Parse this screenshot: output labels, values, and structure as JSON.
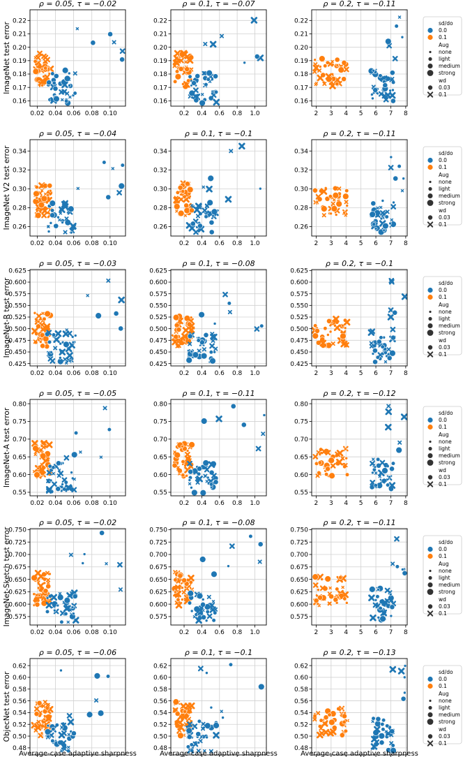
{
  "figure": {
    "xlabel": "Average-case adaptive sharpness",
    "legend": {
      "hue_title": "sd/do",
      "hue_entries": [
        {
          "label": "0.0",
          "color": "#1f77b4"
        },
        {
          "label": "0.1",
          "color": "#ff7f0e"
        }
      ],
      "size_title": "Aug",
      "size_entries": [
        "none",
        "light",
        "medium",
        "strong"
      ],
      "style_title": "wd",
      "style_entries": [
        {
          "label": "0.03",
          "marker": "circle"
        },
        {
          "label": "0.1",
          "marker": "x"
        }
      ]
    }
  },
  "chart_data": [
    {
      "type": "scatter",
      "row": 0,
      "col": 0,
      "title": "ρ = 0.05, τ = −0.02",
      "ylabel": "ImageNet test error",
      "xlim": [
        0.012,
        0.117
      ],
      "ylim": [
        0.156,
        0.228
      ],
      "xticks": [
        "0.02",
        "0.04",
        "0.06",
        "0.08",
        "0.10"
      ],
      "yticks": [
        "0.16",
        "0.17",
        "0.18",
        "0.19",
        "0.20",
        "0.21",
        "0.22"
      ]
    },
    {
      "type": "scatter",
      "row": 0,
      "col": 1,
      "title": "ρ = 0.1, τ = −0.07",
      "ylabel": "",
      "xlim": [
        0.05,
        1.13
      ],
      "ylim": [
        0.156,
        0.228
      ],
      "xticks": [
        "0.2",
        "0.4",
        "0.6",
        "0.8",
        "1.0"
      ],
      "yticks": [
        "0.16",
        "0.17",
        "0.18",
        "0.19",
        "0.20",
        "0.21",
        "0.22"
      ]
    },
    {
      "type": "scatter",
      "row": 0,
      "col": 2,
      "title": "ρ = 0.2, τ = −0.11",
      "ylabel": "",
      "xlim": [
        1.7,
        8.1
      ],
      "ylim": [
        0.156,
        0.228
      ],
      "xticks": [
        "2",
        "3",
        "4",
        "5",
        "6",
        "7",
        "8"
      ],
      "yticks": [
        "0.16",
        "0.17",
        "0.18",
        "0.19",
        "0.20",
        "0.21",
        "0.22"
      ]
    },
    {
      "type": "scatter",
      "row": 1,
      "col": 0,
      "title": "ρ = 0.05, τ = −0.04",
      "ylabel": "ImageNet V2 test error",
      "xlim": [
        0.012,
        0.117
      ],
      "ylim": [
        0.25,
        0.352
      ],
      "xticks": [
        "0.02",
        "0.04",
        "0.06",
        "0.08",
        "0.10"
      ],
      "yticks": [
        "0.26",
        "0.28",
        "0.30",
        "0.32",
        "0.34"
      ]
    },
    {
      "type": "scatter",
      "row": 1,
      "col": 1,
      "title": "ρ = 0.1, τ = −0.1",
      "ylabel": "",
      "xlim": [
        0.05,
        1.13
      ],
      "ylim": [
        0.25,
        0.352
      ],
      "xticks": [
        "0.2",
        "0.4",
        "0.6",
        "0.8",
        "1.0"
      ],
      "yticks": [
        "0.26",
        "0.28",
        "0.30",
        "0.32",
        "0.34"
      ]
    },
    {
      "type": "scatter",
      "row": 1,
      "col": 2,
      "title": "ρ = 0.2, τ = −0.11",
      "ylabel": "",
      "xlim": [
        1.7,
        8.1
      ],
      "ylim": [
        0.25,
        0.352
      ],
      "xticks": [
        "2",
        "3",
        "4",
        "5",
        "6",
        "7",
        "8"
      ],
      "yticks": [
        "0.26",
        "0.28",
        "0.30",
        "0.32",
        "0.34"
      ]
    },
    {
      "type": "scatter",
      "row": 2,
      "col": 0,
      "title": "ρ = 0.05, τ = −0.03",
      "ylabel": "ImageNet-R test error",
      "xlim": [
        0.012,
        0.117
      ],
      "ylim": [
        0.42,
        0.627
      ],
      "xticks": [
        "0.02",
        "0.04",
        "0.06",
        "0.08",
        "0.10"
      ],
      "yticks": [
        "0.425",
        "0.450",
        "0.475",
        "0.500",
        "0.525",
        "0.550",
        "0.575",
        "0.600",
        "0.625"
      ]
    },
    {
      "type": "scatter",
      "row": 2,
      "col": 1,
      "title": "ρ = 0.1, τ = −0.08",
      "ylabel": "",
      "xlim": [
        0.05,
        1.13
      ],
      "ylim": [
        0.42,
        0.627
      ],
      "xticks": [
        "0.2",
        "0.4",
        "0.6",
        "0.8",
        "1.0"
      ],
      "yticks": [
        "0.425",
        "0.450",
        "0.475",
        "0.500",
        "0.525",
        "0.550",
        "0.575",
        "0.600",
        "0.625"
      ]
    },
    {
      "type": "scatter",
      "row": 2,
      "col": 2,
      "title": "ρ = 0.2, τ = −0.1",
      "ylabel": "",
      "xlim": [
        1.7,
        8.1
      ],
      "ylim": [
        0.42,
        0.627
      ],
      "xticks": [
        "2",
        "3",
        "4",
        "5",
        "6",
        "7",
        "8"
      ],
      "yticks": [
        "0.425",
        "0.450",
        "0.475",
        "0.500",
        "0.525",
        "0.550",
        "0.575",
        "0.600",
        "0.625"
      ]
    },
    {
      "type": "scatter",
      "row": 3,
      "col": 0,
      "title": "ρ = 0.05, τ = −0.05",
      "ylabel": "ImageNet-A test error",
      "xlim": [
        0.012,
        0.117
      ],
      "ylim": [
        0.54,
        0.812
      ],
      "xticks": [
        "0.02",
        "0.04",
        "0.06",
        "0.08",
        "0.10"
      ],
      "yticks": [
        "0.55",
        "0.60",
        "0.65",
        "0.70",
        "0.75",
        "0.80"
      ]
    },
    {
      "type": "scatter",
      "row": 3,
      "col": 1,
      "title": "ρ = 0.1, τ = −0.11",
      "ylabel": "",
      "xlim": [
        0.05,
        1.13
      ],
      "ylim": [
        0.54,
        0.812
      ],
      "xticks": [
        "0.2",
        "0.4",
        "0.6",
        "0.8",
        "1.0"
      ],
      "yticks": [
        "0.55",
        "0.60",
        "0.65",
        "0.70",
        "0.75",
        "0.80"
      ]
    },
    {
      "type": "scatter",
      "row": 3,
      "col": 2,
      "title": "ρ = 0.2, τ = −0.12",
      "ylabel": "",
      "xlim": [
        1.7,
        8.1
      ],
      "ylim": [
        0.54,
        0.812
      ],
      "xticks": [
        "2",
        "3",
        "4",
        "5",
        "6",
        "7",
        "8"
      ],
      "yticks": [
        "0.55",
        "0.60",
        "0.65",
        "0.70",
        "0.75",
        "0.80"
      ]
    },
    {
      "type": "scatter",
      "row": 4,
      "col": 0,
      "title": "ρ = 0.05, τ = −0.02",
      "ylabel": "ImageNet-Sketch test error",
      "xlim": [
        0.012,
        0.117
      ],
      "ylim": [
        0.558,
        0.752
      ],
      "xticks": [
        "0.02",
        "0.04",
        "0.06",
        "0.08",
        "0.10"
      ],
      "yticks": [
        "0.575",
        "0.600",
        "0.625",
        "0.650",
        "0.675",
        "0.700",
        "0.725",
        "0.750"
      ]
    },
    {
      "type": "scatter",
      "row": 4,
      "col": 1,
      "title": "ρ = 0.1, τ = −0.08",
      "ylabel": "",
      "xlim": [
        0.05,
        1.13
      ],
      "ylim": [
        0.558,
        0.752
      ],
      "xticks": [
        "0.2",
        "0.4",
        "0.6",
        "0.8",
        "1.0"
      ],
      "yticks": [
        "0.575",
        "0.600",
        "0.625",
        "0.650",
        "0.675",
        "0.700",
        "0.725",
        "0.750"
      ]
    },
    {
      "type": "scatter",
      "row": 4,
      "col": 2,
      "title": "ρ = 0.2, τ = −0.11",
      "ylabel": "",
      "xlim": [
        1.7,
        8.1
      ],
      "ylim": [
        0.558,
        0.752
      ],
      "xticks": [
        "2",
        "3",
        "4",
        "5",
        "6",
        "7",
        "8"
      ],
      "yticks": [
        "0.575",
        "0.600",
        "0.625",
        "0.650",
        "0.675",
        "0.700",
        "0.725",
        "0.750"
      ]
    },
    {
      "type": "scatter",
      "row": 5,
      "col": 0,
      "title": "ρ = 0.05, τ = −0.06",
      "ylabel": "ObjecNet test error",
      "xlim": [
        0.012,
        0.117
      ],
      "ylim": [
        0.468,
        0.632
      ],
      "xticks": [
        "0.02",
        "0.04",
        "0.06",
        "0.08",
        "0.10"
      ],
      "yticks": [
        "0.48",
        "0.50",
        "0.52",
        "0.54",
        "0.56",
        "0.58",
        "0.60",
        "0.62"
      ]
    },
    {
      "type": "scatter",
      "row": 5,
      "col": 1,
      "title": "ρ = 0.1, τ = −0.1",
      "ylabel": "",
      "xlim": [
        0.05,
        1.13
      ],
      "ylim": [
        0.468,
        0.632
      ],
      "xticks": [
        "0.2",
        "0.4",
        "0.6",
        "0.8",
        "1.0"
      ],
      "yticks": [
        "0.48",
        "0.50",
        "0.52",
        "0.54",
        "0.56",
        "0.58",
        "0.60",
        "0.62"
      ]
    },
    {
      "type": "scatter",
      "row": 5,
      "col": 2,
      "title": "ρ = 0.2, τ = −0.13",
      "ylabel": "",
      "xlim": [
        1.7,
        8.1
      ],
      "ylim": [
        0.468,
        0.632
      ],
      "xticks": [
        "2",
        "3",
        "4",
        "5",
        "6",
        "7",
        "8"
      ],
      "yticks": [
        "0.48",
        "0.50",
        "0.52",
        "0.54",
        "0.56",
        "0.58",
        "0.60",
        "0.62"
      ]
    }
  ]
}
